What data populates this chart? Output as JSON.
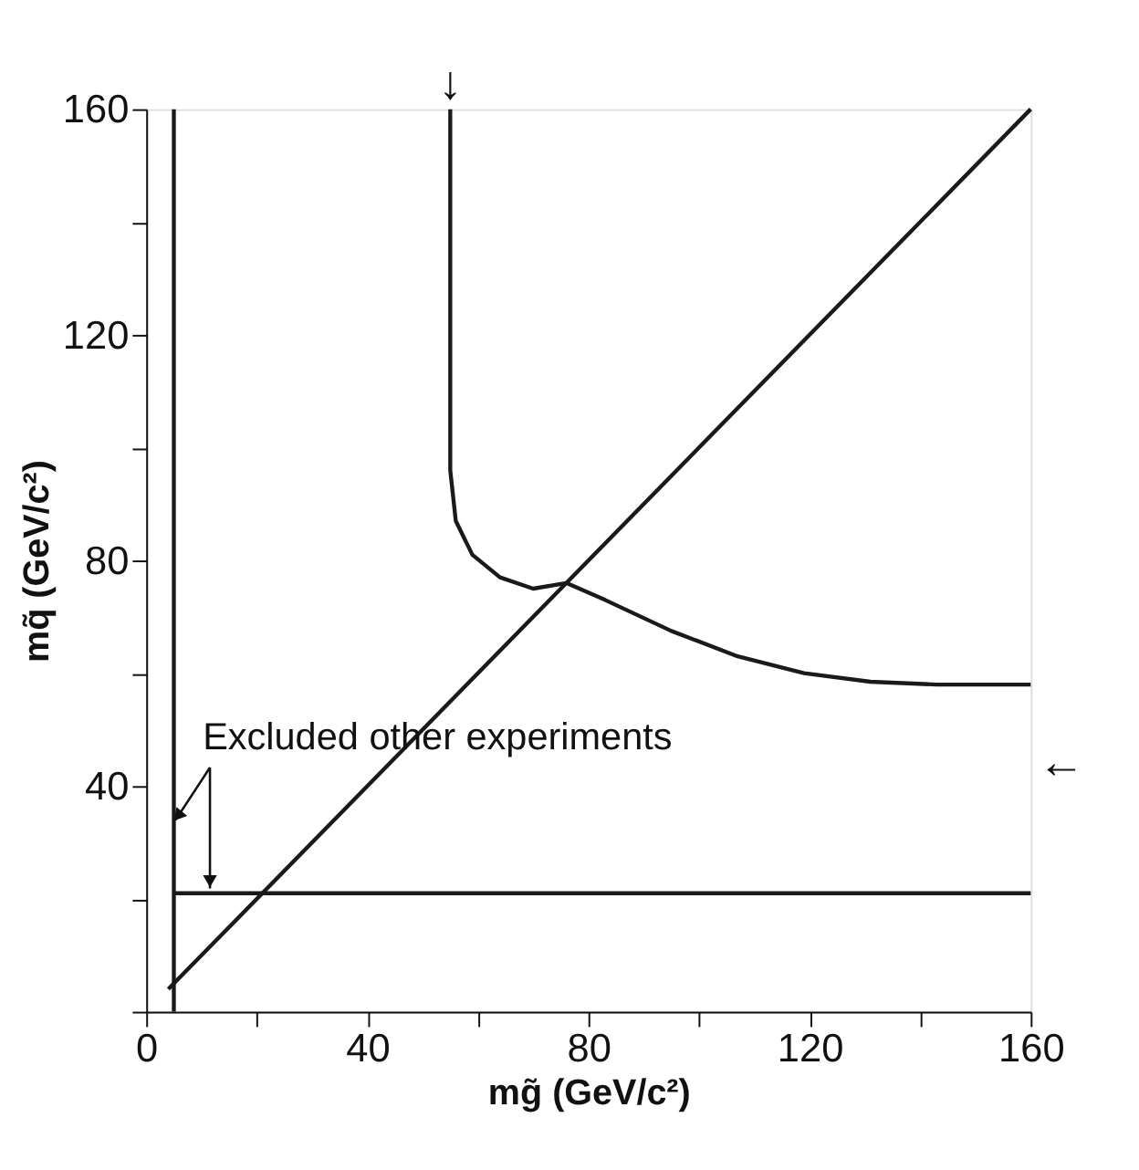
{
  "chart_data": {
    "type": "line",
    "xlabel": "mg̃ (GeV/c²)",
    "ylabel": "mq̃ (GeV/c²)",
    "xlim": [
      0,
      160
    ],
    "ylim": [
      0,
      160
    ],
    "xticks": [
      0,
      {
        "value": 20,
        "label": null
      },
      40,
      {
        "value": 60,
        "label": null
      },
      80,
      {
        "value": 100,
        "label": null
      },
      120,
      {
        "value": 140,
        "label": null
      },
      160
    ],
    "yticks": [
      {
        "value": 0,
        "label": null
      },
      {
        "value": 20,
        "label": null
      },
      40,
      {
        "value": 60,
        "label": null
      },
      80,
      {
        "value": 100,
        "label": null
      },
      120,
      {
        "value": 140,
        "label": null
      },
      160
    ],
    "grid": false,
    "legend": false,
    "marker": "none",
    "line_style": "solid",
    "series": [
      {
        "color": "#1a1a1a",
        "x": [
          55,
          55,
          55,
          56,
          59,
          64,
          70,
          76,
          83,
          95,
          107,
          119,
          131,
          143,
          160
        ],
        "values": [
          160,
          114,
          96,
          87,
          81,
          77,
          75,
          76,
          73,
          67.5,
          63,
          60,
          58.5,
          58,
          58
        ]
      },
      {
        "color": "#1a1a1a",
        "x": [
          4,
          160
        ],
        "values": [
          4,
          160
        ]
      },
      {
        "color": "#1a1a1a",
        "x": [
          5,
          160
        ],
        "values": [
          21,
          21
        ]
      },
      {
        "color": "#1a1a1a",
        "x": [
          5,
          5
        ],
        "values": [
          0,
          160
        ]
      }
    ],
    "annotations": [
      {
        "text": "Excluded other experiments",
        "x": 5,
        "y": 34
      },
      {
        "text": "↓",
        "x": 55,
        "y": 160
      },
      "←"
    ]
  }
}
